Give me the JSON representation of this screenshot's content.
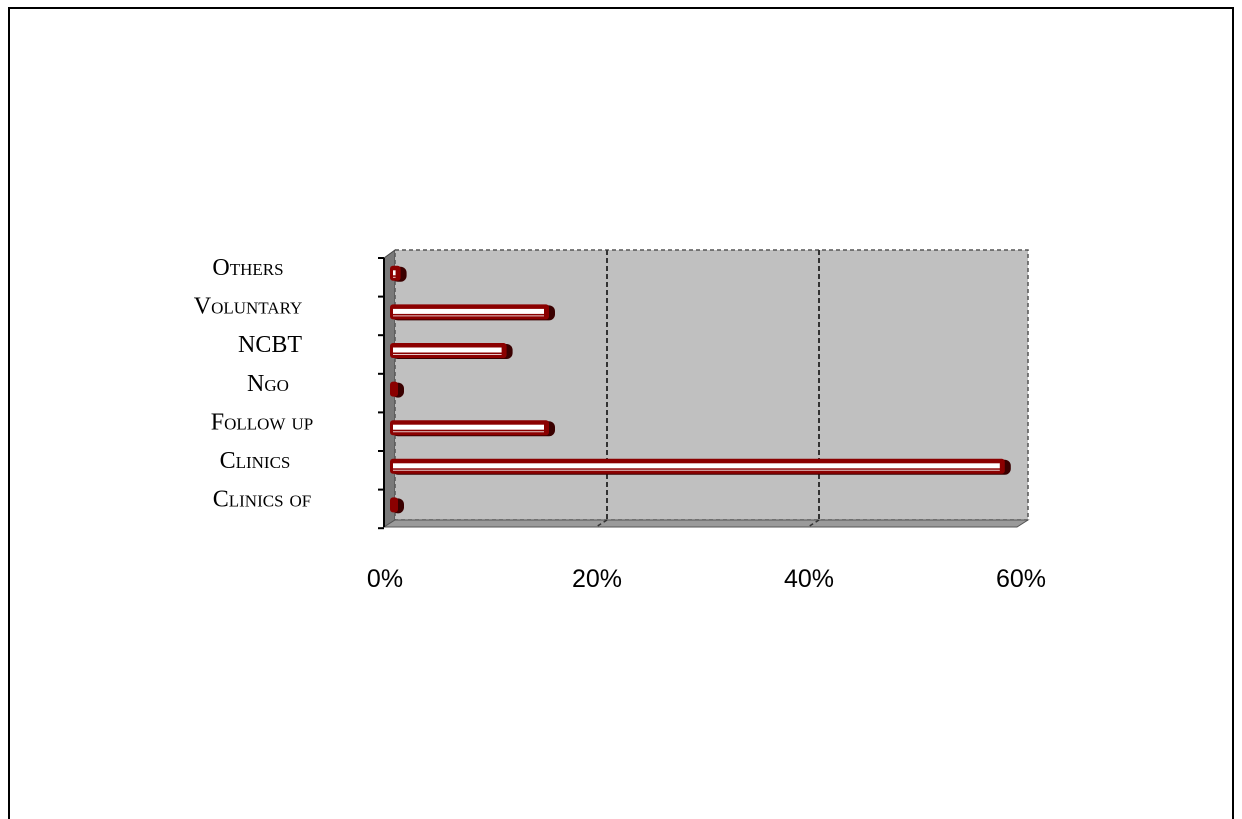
{
  "chart_data": {
    "type": "bar",
    "orientation": "horizontal",
    "categories": [
      "Others",
      "Voluntary",
      "NCBT",
      "Ngo",
      "Follow up",
      "Clinics",
      "Clinics of"
    ],
    "values": [
      1,
      15,
      11,
      0,
      15,
      58,
      0
    ],
    "xlim": [
      0,
      60
    ],
    "x_ticks": [
      "0%",
      "20%",
      "40%",
      "60%"
    ],
    "x_tick_values": [
      0,
      20,
      40,
      60
    ],
    "grid": "vertical dashed",
    "colors": {
      "plot_background": "#c0c0c0",
      "bar_fill": "#ffffff",
      "bar_stroke": "#8b0000",
      "bar_shadow": "#3a0000",
      "grid": "#333333"
    }
  }
}
